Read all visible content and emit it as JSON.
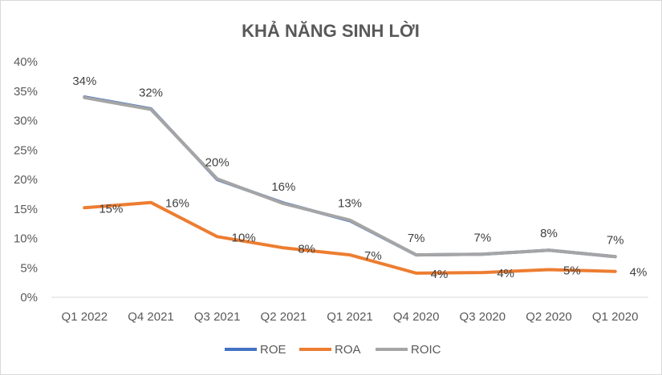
{
  "chart_data": {
    "type": "line",
    "title": "KHẢ NĂNG SINH LỜI",
    "xlabel": "",
    "ylabel": "",
    "categories": [
      "Q1 2022",
      "Q4 2021",
      "Q3 2021",
      "Q2 2021",
      "Q1 2021",
      "Q4 2020",
      "Q3 2020",
      "Q2 2020",
      "Q1 2020"
    ],
    "y_ticks": [
      "0%",
      "5%",
      "10%",
      "15%",
      "20%",
      "25%",
      "30%",
      "35%",
      "40%"
    ],
    "ylim": [
      0,
      40
    ],
    "grid": false,
    "legend_position": "bottom",
    "series": [
      {
        "name": "ROE",
        "color": "#4472c4",
        "values": [
          34,
          32,
          20,
          16,
          13,
          7.2,
          7.3,
          8,
          6.9
        ],
        "labels": []
      },
      {
        "name": "ROA",
        "color": "#ed7d31",
        "values": [
          15.2,
          16.1,
          10.3,
          8.4,
          7.2,
          4.1,
          4.2,
          4.7,
          4.4
        ],
        "labels": [
          "15%",
          "16%",
          "10%",
          "8%",
          "7%",
          "4%",
          "4%",
          "5%",
          "4%"
        ]
      },
      {
        "name": "ROIC",
        "color": "#a5a5a5",
        "values": [
          33.9,
          31.9,
          20.1,
          15.9,
          13.1,
          7.2,
          7.3,
          8,
          6.9
        ],
        "labels": [
          "34%",
          "32%",
          "20%",
          "16%",
          "13%",
          "7%",
          "7%",
          "8%",
          "7%"
        ]
      }
    ]
  }
}
